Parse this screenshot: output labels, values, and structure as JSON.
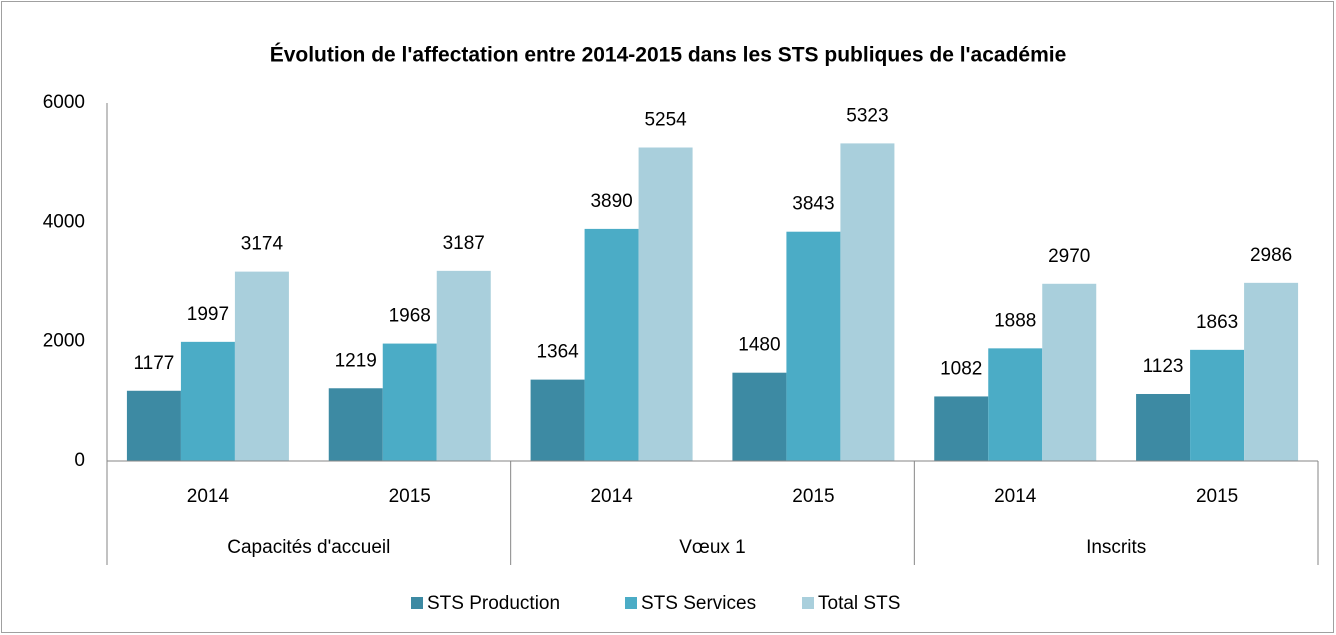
{
  "chart_data": {
    "type": "bar",
    "title": "Évolution de l'affectation entre 2014-2015 dans les STS publiques de l'académie",
    "categories": [
      "2014",
      "2015",
      "2014",
      "2015",
      "2014",
      "2015"
    ],
    "category_groups": [
      "Capacités d'accueil",
      "Vœux 1",
      "Inscrits"
    ],
    "series": [
      {
        "name": "STS Production",
        "color": "#3d8aa3",
        "values": [
          1177,
          1219,
          1364,
          1480,
          1082,
          1123
        ]
      },
      {
        "name": "STS Services",
        "color": "#4bacc6",
        "values": [
          1997,
          1968,
          3890,
          3843,
          1888,
          1863
        ]
      },
      {
        "name": "Total STS",
        "color": "#a9cfdc",
        "values": [
          3174,
          3187,
          5254,
          5323,
          2970,
          2986
        ]
      }
    ],
    "ylim": [
      0,
      6000
    ],
    "yticks": [
      0,
      2000,
      4000,
      6000
    ],
    "grid": false,
    "legend": "bottom"
  }
}
